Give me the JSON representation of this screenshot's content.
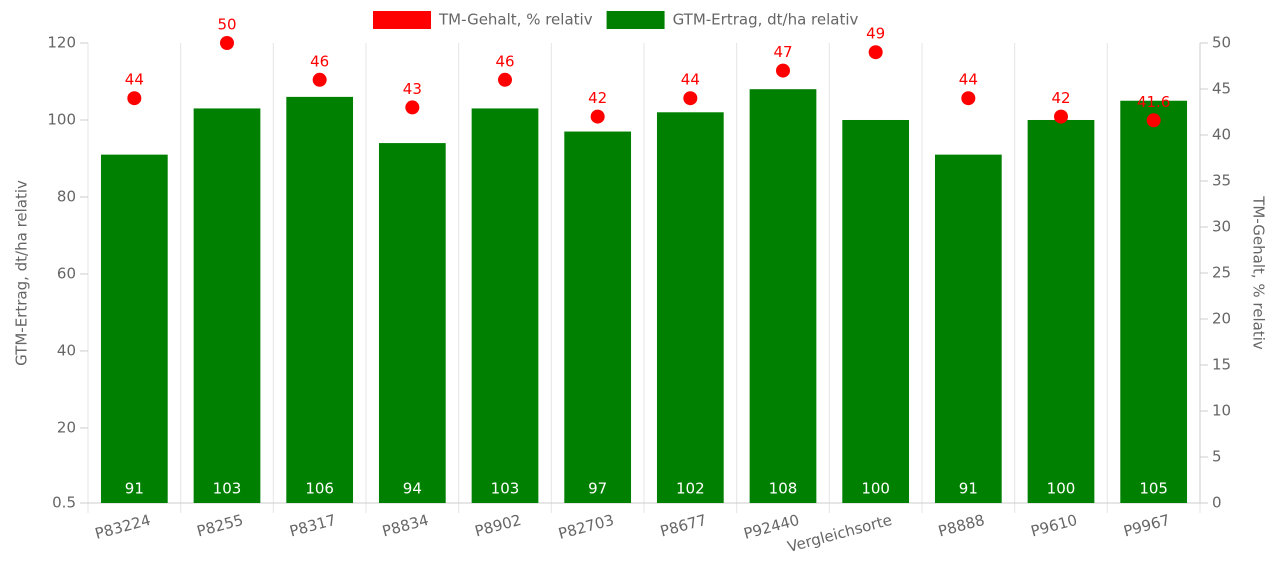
{
  "chart_data": {
    "type": "bar",
    "categories": [
      "P83224",
      "P8255",
      "P8317",
      "P8834",
      "P8902",
      "P82703",
      "P8677",
      "P92440",
      "Vergleichsorte",
      "P8888",
      "P9610",
      "P9967"
    ],
    "series": [
      {
        "name": "TM-Gehalt, % relativ",
        "color": "#ff0000",
        "type": "scatter",
        "axis": "y2",
        "values": [
          44,
          50,
          46,
          43,
          46,
          42,
          44,
          47,
          49,
          44,
          42,
          41.6
        ]
      },
      {
        "name": "GTM-Ertrag, dt/ha relativ",
        "color": "#008000",
        "type": "bar",
        "values": [
          91,
          103,
          106,
          94,
          103,
          97,
          102,
          108,
          100,
          91,
          100,
          105
        ]
      }
    ],
    "ylabel": "GTM-Ertrag, dt/ha relativ",
    "y2label": "TM-Gehalt, % relativ",
    "ylim": [
      0.5,
      120
    ],
    "yticks": [
      0.5,
      20,
      40,
      60,
      80,
      100,
      120
    ],
    "y2lim": [
      0,
      50
    ],
    "y2ticks": [
      0,
      5,
      10,
      15,
      20,
      25,
      30,
      35,
      40,
      45,
      50
    ],
    "grid": true
  }
}
